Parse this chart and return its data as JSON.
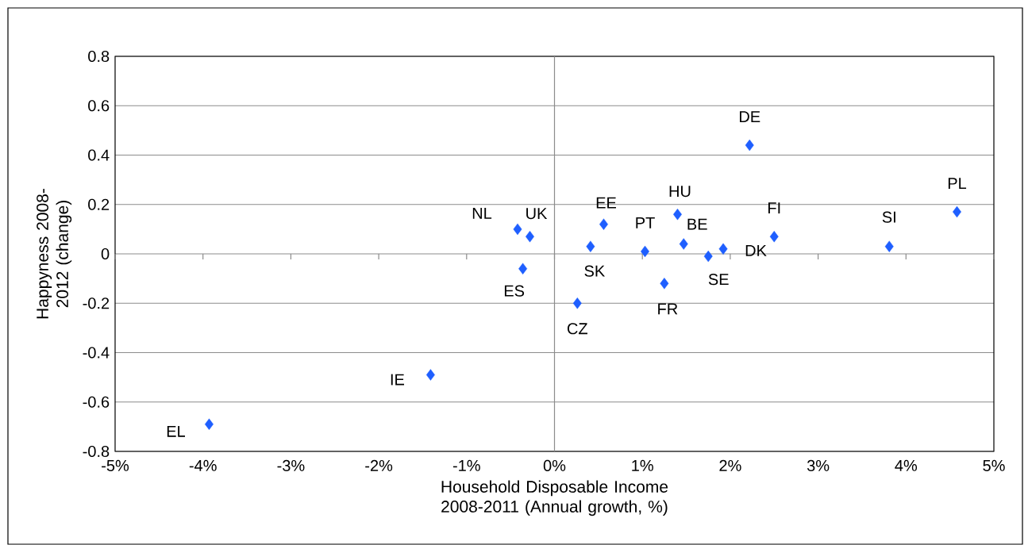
{
  "chart_data": {
    "type": "scatter",
    "xlabel": "Household Disposable Income 2008-2011 (Annual growth, %)",
    "ylabel": "Happyness 2008-2012 (change)",
    "series": [
      {
        "color": "#1f5fff",
        "x": [
          -3.93,
          -1.41,
          -0.42,
          -0.28,
          -0.36,
          0.41,
          0.56,
          0.26,
          1.03,
          1.4,
          1.47,
          1.25,
          1.75,
          1.92,
          2.22,
          2.5,
          3.81,
          4.58
        ],
        "values": [
          -0.69,
          -0.49,
          0.1,
          0.07,
          -0.06,
          0.03,
          0.12,
          -0.2,
          0.01,
          0.16,
          0.04,
          -0.12,
          -0.01,
          0.02,
          0.44,
          0.07,
          0.03,
          0.17
        ]
      }
    ],
    "annotations": [
      {
        "text": "EL",
        "x": -3.93,
        "y": -0.69
      },
      {
        "text": "IE",
        "x": -1.41,
        "y": -0.49
      },
      {
        "text": "NL",
        "x": -0.42,
        "y": 0.1
      },
      {
        "text": "UK",
        "x": -0.28,
        "y": 0.07
      },
      {
        "text": "ES",
        "x": -0.36,
        "y": -0.06
      },
      {
        "text": "SK",
        "x": 0.41,
        "y": 0.03
      },
      {
        "text": "EE",
        "x": 0.56,
        "y": 0.12
      },
      {
        "text": "CZ",
        "x": 0.26,
        "y": -0.2
      },
      {
        "text": "PT",
        "x": 1.03,
        "y": 0.01
      },
      {
        "text": "HU",
        "x": 1.4,
        "y": 0.16
      },
      {
        "text": "BE",
        "x": 1.47,
        "y": 0.04
      },
      {
        "text": "FR",
        "x": 1.25,
        "y": -0.12
      },
      {
        "text": "SE",
        "x": 1.75,
        "y": -0.01
      },
      {
        "text": "DK",
        "x": 1.92,
        "y": 0.02
      },
      {
        "text": "DE",
        "x": 2.22,
        "y": 0.44
      },
      {
        "text": "FI",
        "x": 2.5,
        "y": 0.07
      },
      {
        "text": "SI",
        "x": 3.81,
        "y": 0.03
      },
      {
        "text": "PL",
        "x": 4.58,
        "y": 0.17
      }
    ],
    "xlim": [
      -5,
      5
    ],
    "xticks": [
      {
        "value": -5,
        "label": "-5%"
      },
      {
        "value": -4,
        "label": "-4%"
      },
      {
        "value": -3,
        "label": "-3%"
      },
      {
        "value": -2,
        "label": "-2%"
      },
      {
        "value": -1,
        "label": "-1%"
      },
      {
        "value": 0,
        "label": "0%"
      },
      {
        "value": 1,
        "label": "1%"
      },
      {
        "value": 2,
        "label": "2%"
      },
      {
        "value": 3,
        "label": "3%"
      },
      {
        "value": 4,
        "label": "4%"
      },
      {
        "value": 5,
        "label": "5%"
      }
    ],
    "ylim": [
      -0.8,
      0.8
    ],
    "yticks": [
      -0.8,
      -0.6,
      -0.4,
      -0.2,
      0,
      0.2,
      0.4,
      0.6,
      0.8
    ],
    "ref_lines": [
      {
        "axis": "x",
        "value": 0,
        "color": "#8c8c8c"
      }
    ],
    "grid": "y",
    "marker": "diamond"
  }
}
